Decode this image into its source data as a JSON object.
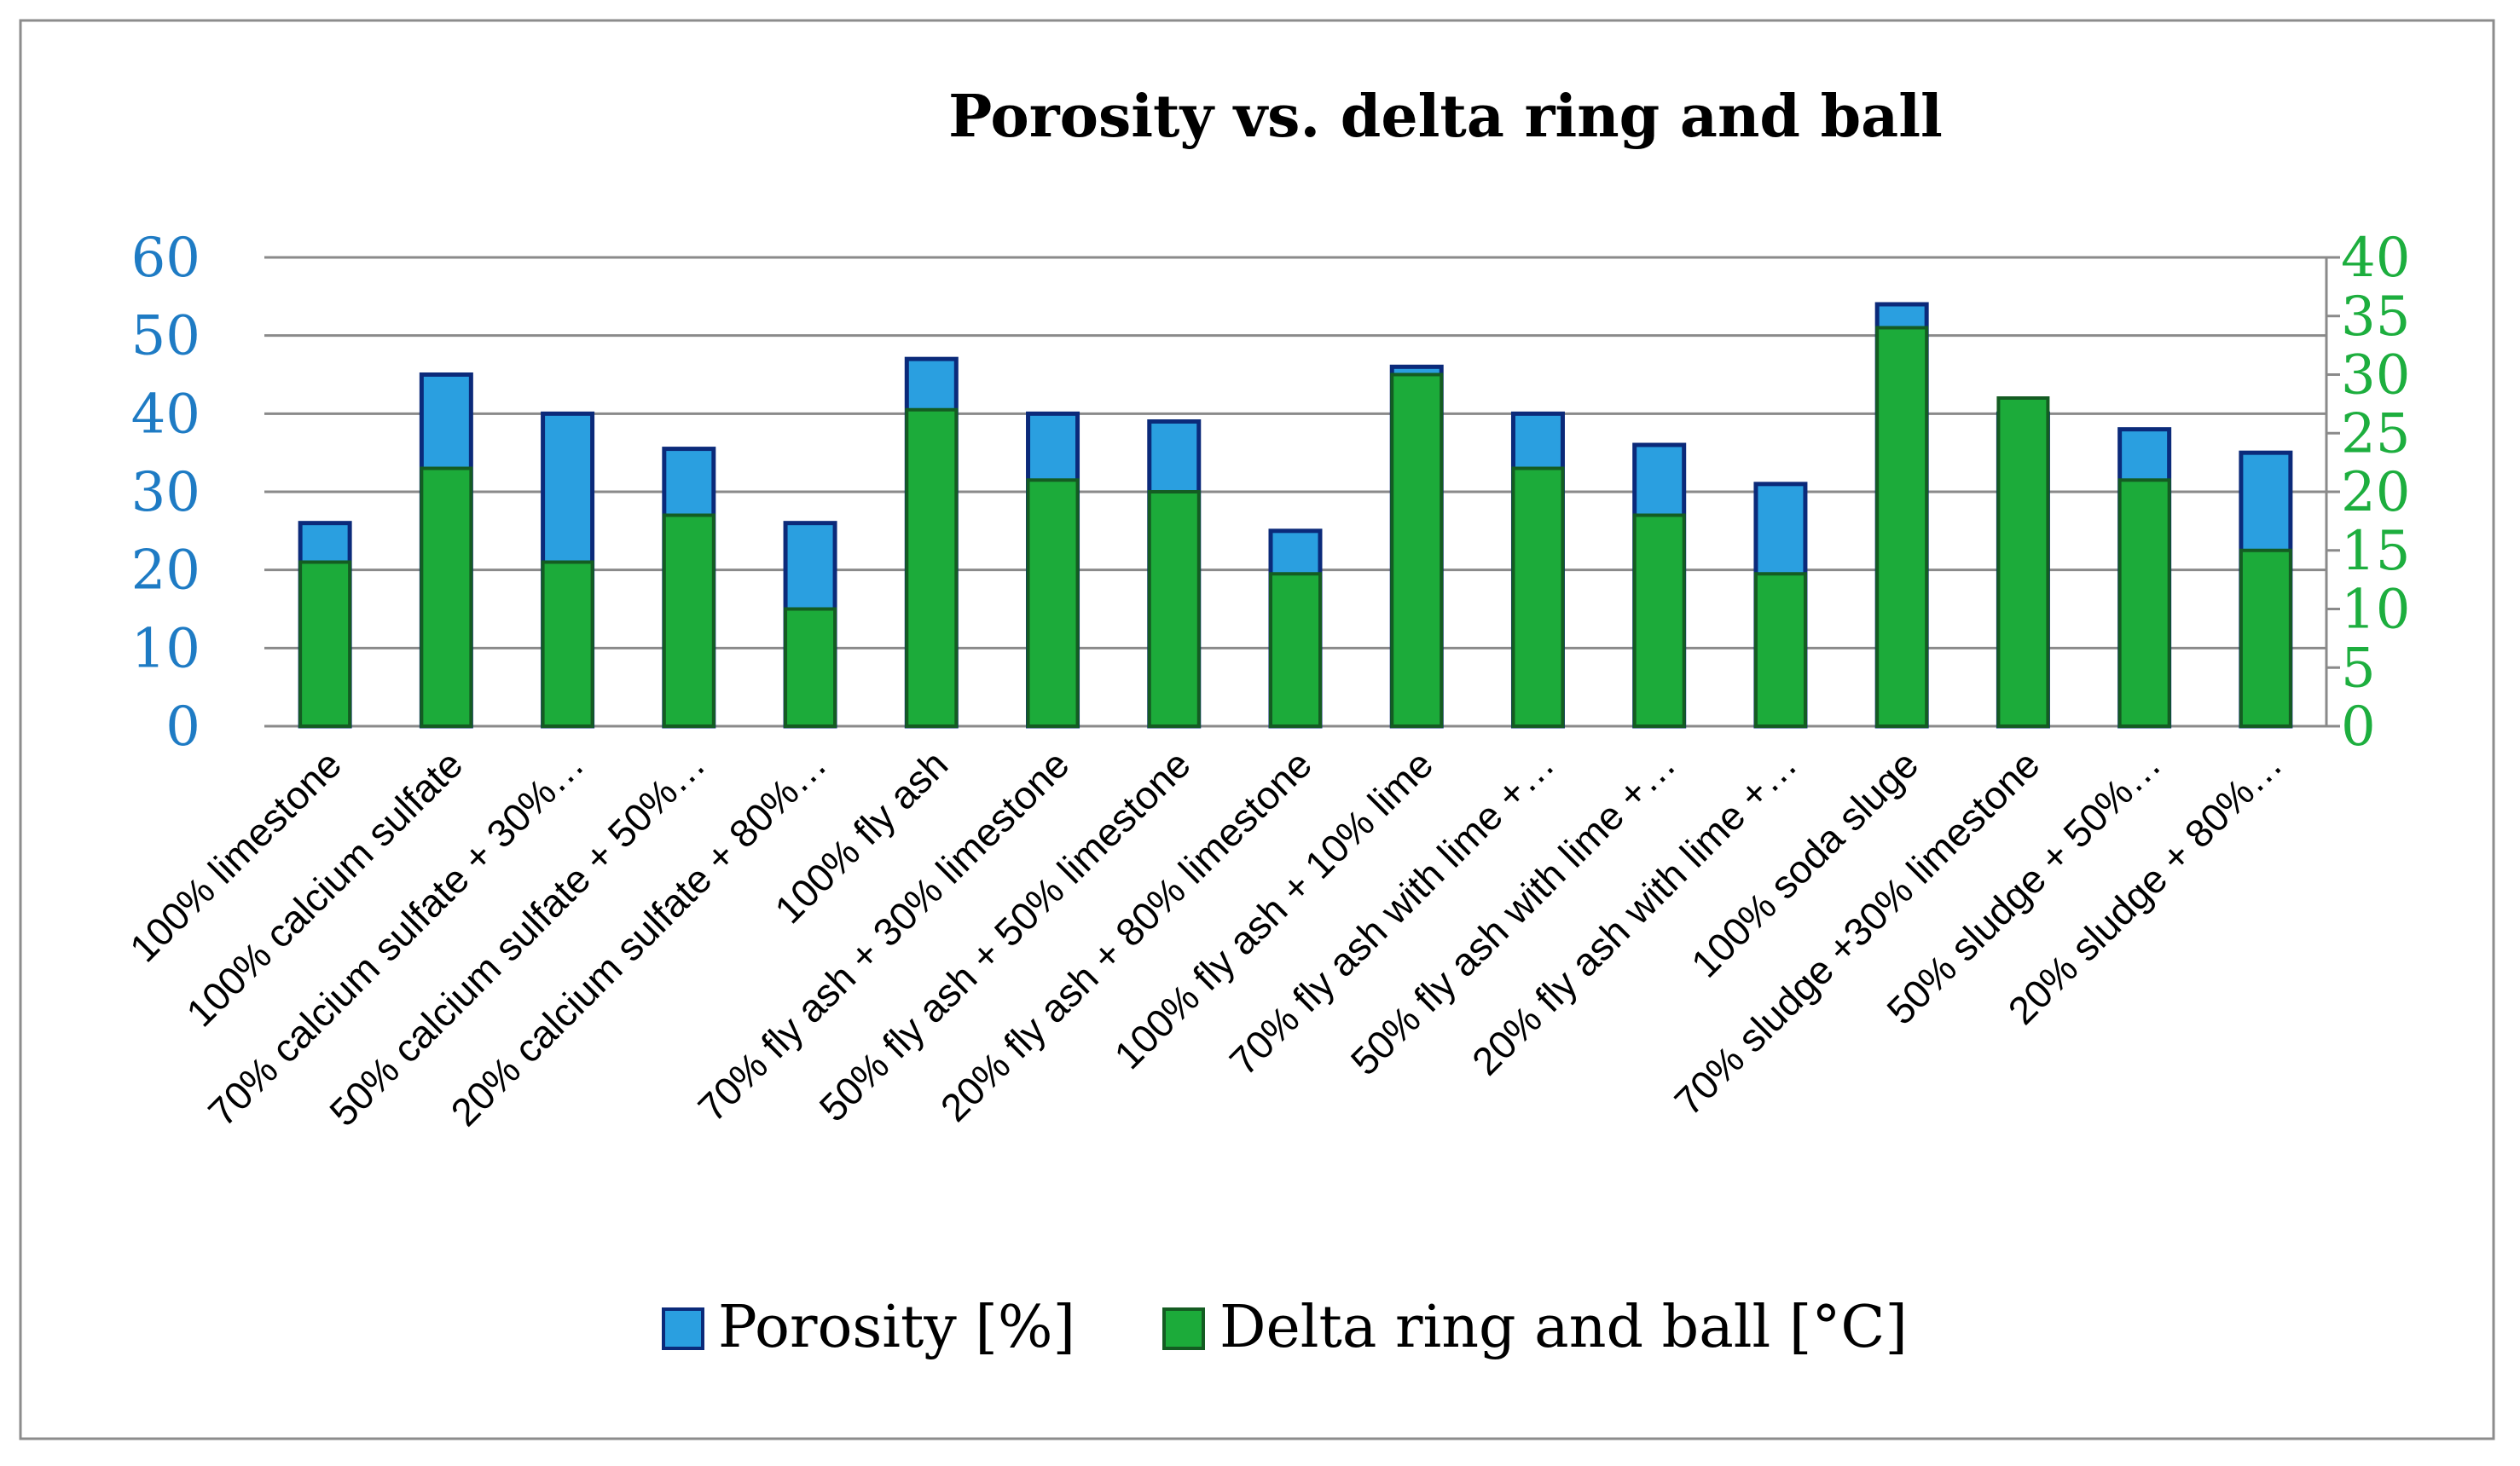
{
  "chart_data": {
    "type": "bar",
    "title": "Porosity vs. delta ring and ball",
    "categories": [
      "100% limestone",
      "100% calcium sulfate",
      "70% calcium sulfate + 30%…",
      "50% calcium sulfate + 50%…",
      "20% calcium sulfate +  80%…",
      "100% fly ash",
      "70% fly ash + 30% limestone",
      "50% fly ash +  50% limestone",
      "20% fly ash +  80% limestone",
      "100% fly ash + 10% lime",
      "70% fly ash with lime  +…",
      "50% fly ash with lime  +…",
      "20% fly ash with lime +…",
      "100% soda sluge",
      "70% sludge +30% limestone",
      "50% sludge +  50%…",
      "20% sludge +  80%…"
    ],
    "series": [
      {
        "name": "Porosity [%]",
        "axis": "left",
        "color": "#2a9fe0",
        "border": "#0b2a7a",
        "values": [
          26,
          45,
          40,
          35.5,
          26,
          47,
          40,
          39,
          25,
          46,
          40,
          36,
          31,
          54,
          40,
          38,
          35
        ]
      },
      {
        "name": "Delta ring and ball [°C]",
        "axis": "right",
        "color": "#1cab3a",
        "border": "#145c22",
        "values": [
          14,
          22,
          14,
          18,
          10,
          27,
          21,
          20,
          13,
          30,
          22,
          18,
          13,
          34,
          28,
          21,
          15
        ]
      }
    ],
    "y_left": {
      "min": 0,
      "max": 60,
      "step": 10,
      "ticks": [
        0,
        10,
        20,
        30,
        40,
        50,
        60
      ],
      "color": "#1e7bc4"
    },
    "y_right": {
      "min": 0,
      "max": 40,
      "step": 5,
      "ticks": [
        0,
        5,
        10,
        15,
        20,
        25,
        30,
        35,
        40
      ],
      "color": "#1dae3e"
    },
    "grid": true,
    "legend_position": "bottom"
  }
}
